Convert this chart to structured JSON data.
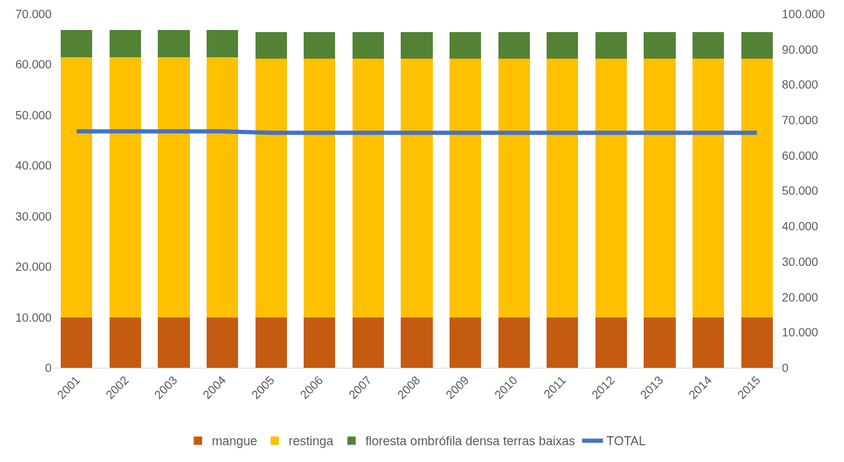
{
  "chart_data": {
    "type": "bar",
    "stacked": true,
    "categories": [
      "2001",
      "2002",
      "2003",
      "2004",
      "2005",
      "2006",
      "2007",
      "2008",
      "2009",
      "2010",
      "2011",
      "2012",
      "2013",
      "2014",
      "2015"
    ],
    "series": [
      {
        "name": "mangue",
        "color": "#c55a11",
        "values": [
          10000,
          10000,
          10000,
          10000,
          10000,
          10000,
          10000,
          10000,
          10000,
          10000,
          10000,
          10000,
          10000,
          10000,
          10000
        ]
      },
      {
        "name": "restinga",
        "color": "#ffc000",
        "values": [
          51500,
          51500,
          51500,
          51500,
          51100,
          51100,
          51100,
          51100,
          51100,
          51100,
          51100,
          51100,
          51100,
          51100,
          51100
        ]
      },
      {
        "name": "floresta ombrófila densa terras baixas",
        "color": "#548235",
        "values": [
          5300,
          5300,
          5300,
          5300,
          5300,
          5300,
          5300,
          5300,
          5300,
          5300,
          5300,
          5300,
          5300,
          5300,
          5300
        ]
      },
      {
        "name": "TOTAL",
        "type": "line",
        "axis": "y2",
        "color": "#4472c4",
        "values": [
          66800,
          66800,
          66800,
          66800,
          66400,
          66400,
          66400,
          66400,
          66400,
          66400,
          66400,
          66400,
          66400,
          66400,
          66400
        ]
      }
    ],
    "ylim": [
      0,
      70000
    ],
    "yticks": [
      {
        "value": 0,
        "label": "0"
      },
      {
        "value": 10000,
        "label": "10.000"
      },
      {
        "value": 20000,
        "label": "20.000"
      },
      {
        "value": 30000,
        "label": "30.000"
      },
      {
        "value": 40000,
        "label": "40.000"
      },
      {
        "value": 50000,
        "label": "50.000"
      },
      {
        "value": 60000,
        "label": "60.000"
      },
      {
        "value": 70000,
        "label": "70.000"
      }
    ],
    "y2lim": [
      0,
      100000
    ],
    "y2ticks": [
      {
        "value": 0,
        "label": "0"
      },
      {
        "value": 10000,
        "label": "10.000"
      },
      {
        "value": 20000,
        "label": "20.000"
      },
      {
        "value": 30000,
        "label": "30.000"
      },
      {
        "value": 40000,
        "label": "40.000"
      },
      {
        "value": 50000,
        "label": "50.000"
      },
      {
        "value": 60000,
        "label": "60.000"
      },
      {
        "value": 70000,
        "label": "70.000"
      },
      {
        "value": 80000,
        "label": "80.000"
      },
      {
        "value": 90000,
        "label": "90.000"
      },
      {
        "value": 100000,
        "label": "100.000"
      }
    ],
    "grid": false,
    "legend": "bottom",
    "marker": "none",
    "line_style": "solid"
  }
}
